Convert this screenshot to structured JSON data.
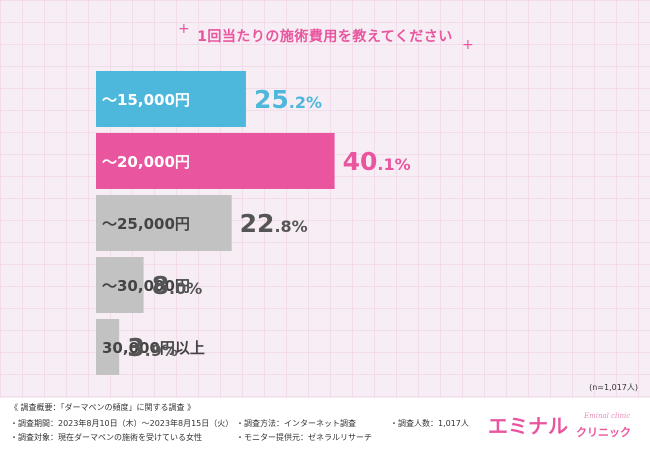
{
  "title": "1回当たりの施術費用を教えてください",
  "chart_data": {
    "type": "bar",
    "orientation": "horizontal",
    "categories": [
      "～15,000円",
      "～20,000円",
      "～25,000円",
      "～30,000円",
      "30,000円以上"
    ],
    "values": [
      25.2,
      40.1,
      22.8,
      8.0,
      3.9
    ],
    "value_labels": [
      {
        "main": "25",
        "dec": ".2%"
      },
      {
        "main": "40",
        "dec": ".1%"
      },
      {
        "main": "22",
        "dec": ".8%"
      },
      {
        "main": "8",
        "dec": ".0%"
      },
      {
        "main": "3",
        "dec": ".9%"
      }
    ],
    "bar_colors": [
      "#4db8dc",
      "#e9559f",
      "#c2c2c2",
      "#c2c2c2",
      "#c2c2c2"
    ],
    "label_colors": [
      "#4db8dc",
      "#e9559f",
      "#555555",
      "#555555",
      "#555555"
    ],
    "title": "1回当たりの施術費用を教えてください"
  },
  "sample_note": "(n=1,017人)",
  "footer": {
    "heading": "《 調査概要：「ダーマペンの頻度」に関する調査 》",
    "period": "・調査期間：2023年8月10日（木）～2023年8月15日（火）",
    "target": "・調査対象：現在ダーマペンの施術を受けている女性",
    "method": "・調査方法：インターネット調査",
    "provider": "・モニター提供元：ゼネラルリサーチ",
    "count": "・調査人数：1,017人"
  },
  "logo": {
    "main": "エミナル",
    "sub": "クリニック",
    "script": "Eminal clinic"
  },
  "colors": {
    "accent": "#e9559f",
    "blue": "#4db8dc",
    "gray": "#c2c2c2"
  }
}
